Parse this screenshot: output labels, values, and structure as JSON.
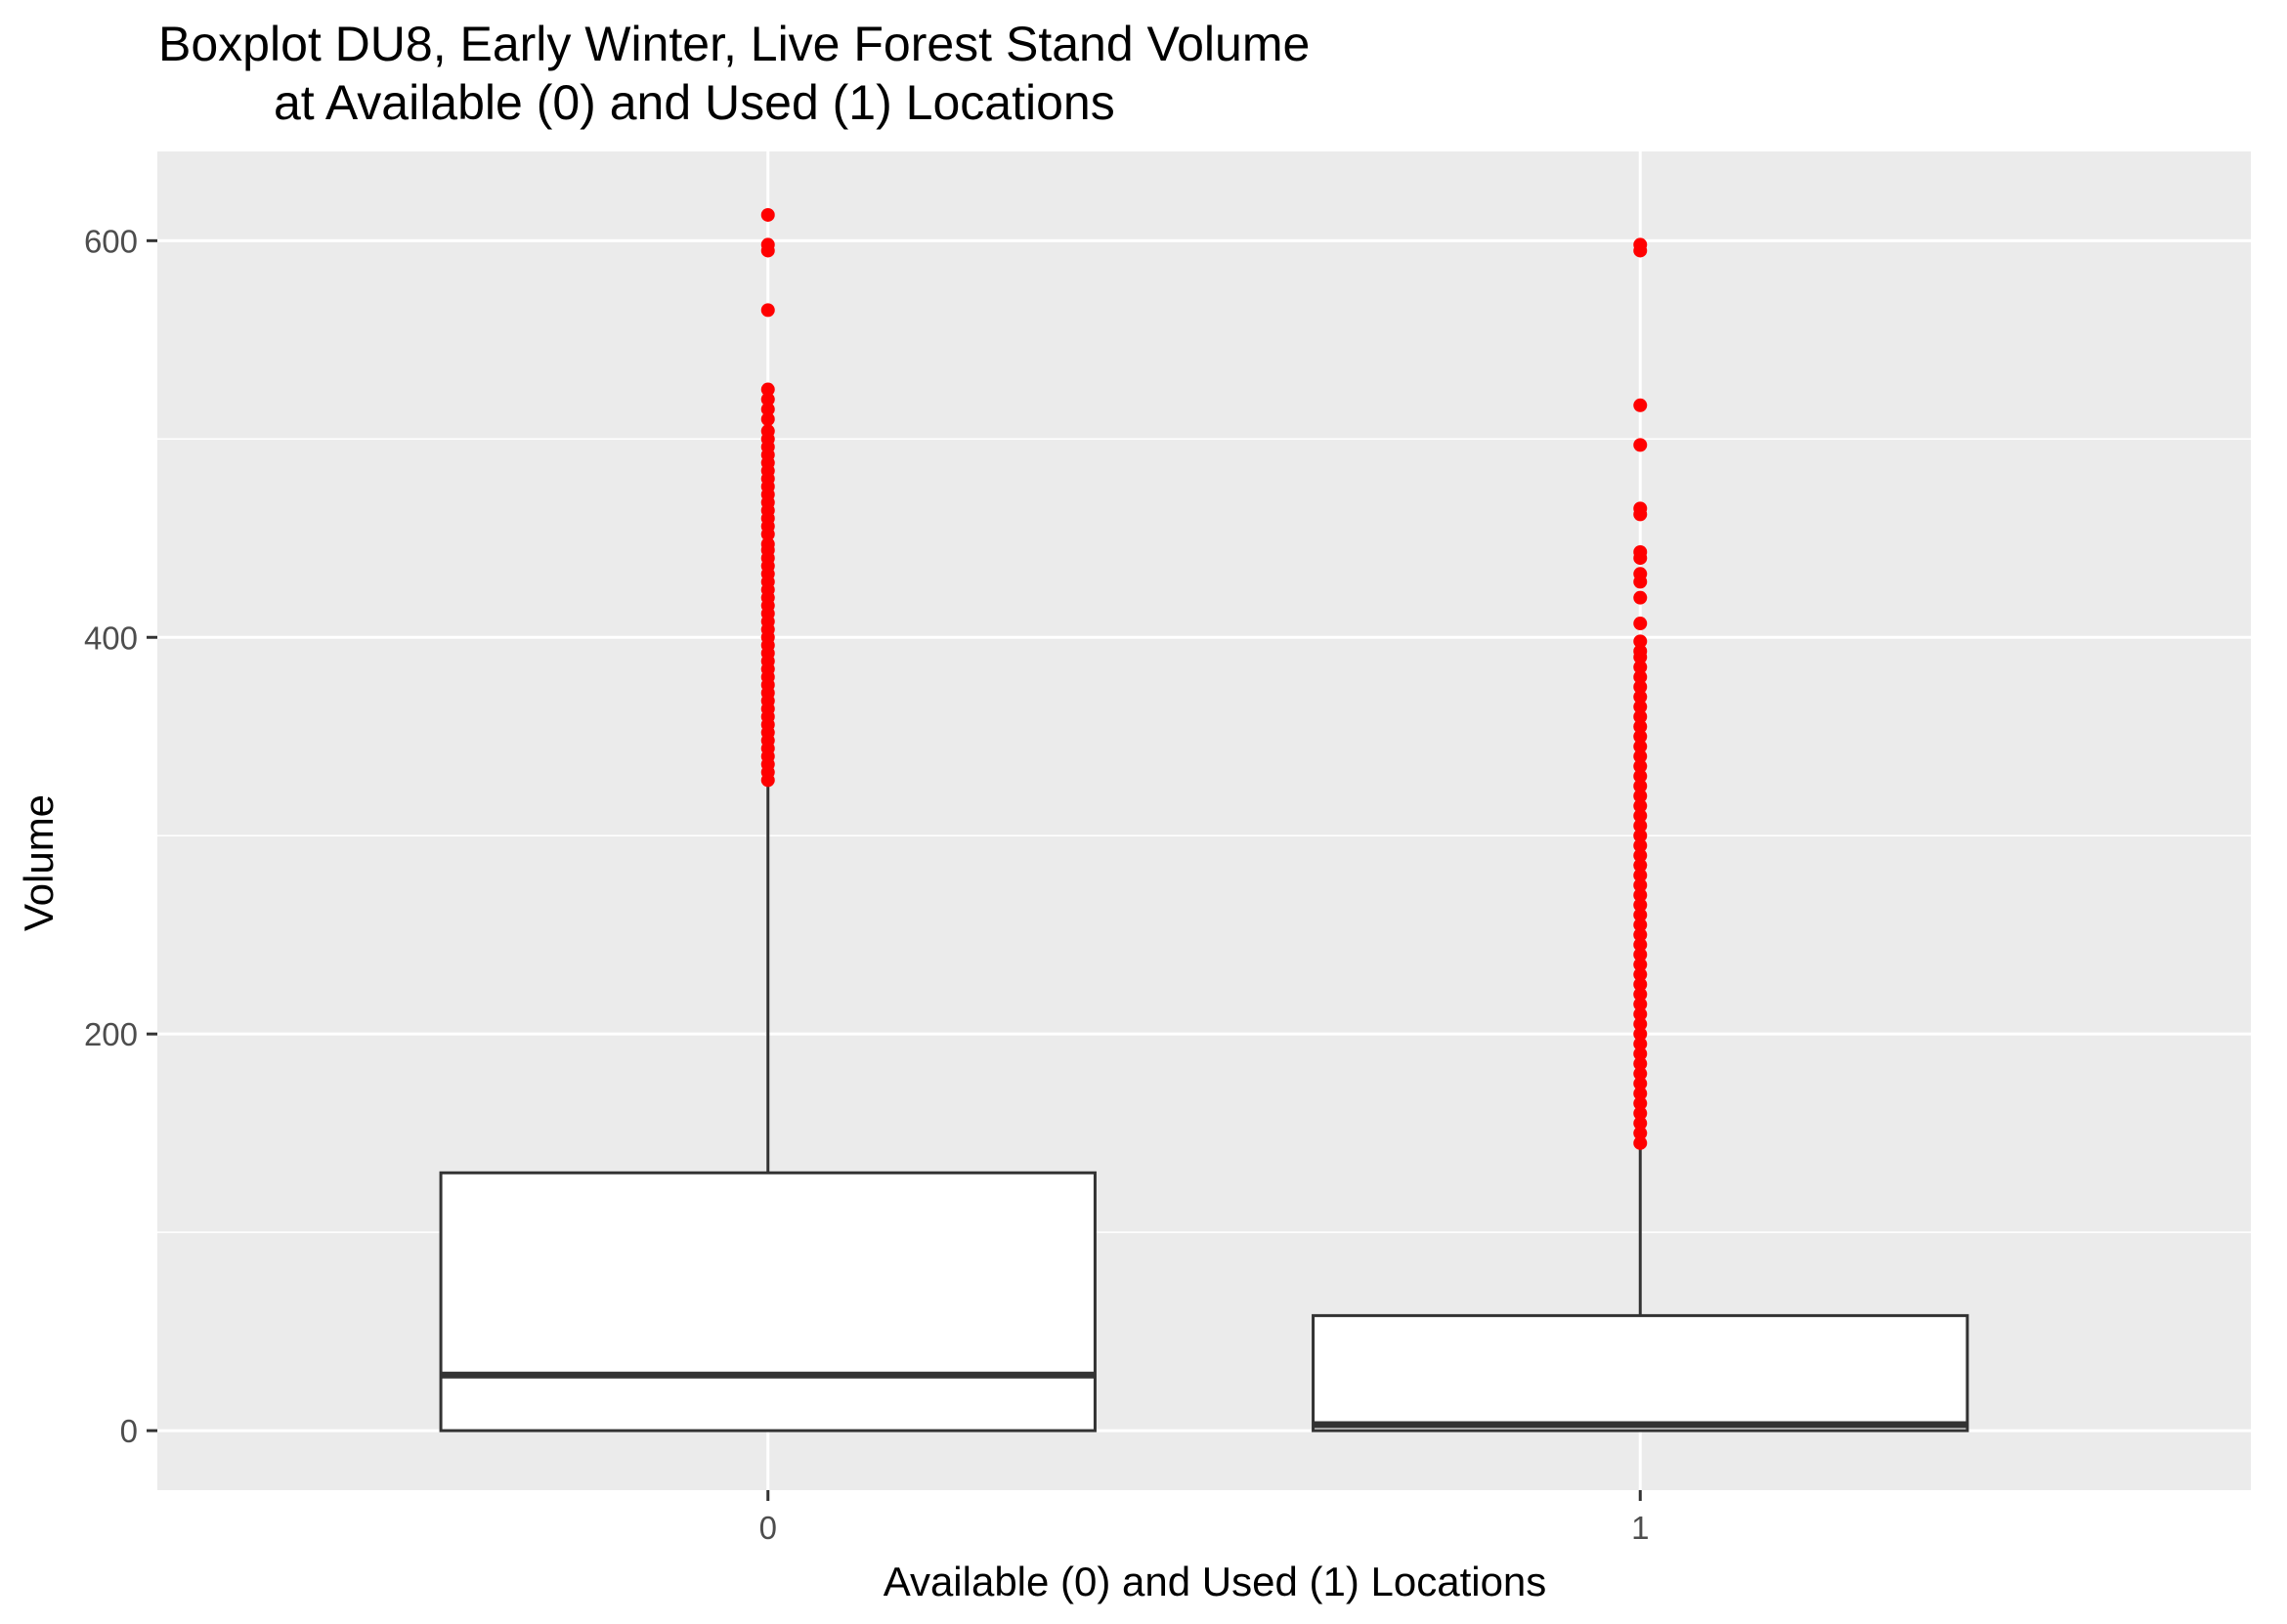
{
  "chart_data": {
    "type": "boxplot",
    "title_line1": "Boxplot DU8, Early Winter, Live Forest Stand Volume",
    "title_line2": "at Available (0) and Used (1) Locations",
    "xlabel": "Available (0) and Used (1) Locations",
    "ylabel": "Volume",
    "categories": [
      "0",
      "1"
    ],
    "ylim": [
      -30,
      645
    ],
    "yticks": [
      0,
      200,
      400,
      600
    ],
    "y_tick_labels": [
      "0",
      "200",
      "400",
      "600"
    ],
    "grid": true,
    "colors": {
      "panel_bg": "#ebebeb",
      "grid": "#ffffff",
      "box_fill": "#ffffff",
      "box_stroke": "#333333",
      "outlier": "#ff0000"
    },
    "boxes": [
      {
        "category": "0",
        "min": 0,
        "q1": 0,
        "median": 28,
        "q3": 130,
        "whisker_high": 325,
        "outliers": [
          328,
          332,
          336,
          340,
          344,
          348,
          352,
          356,
          360,
          364,
          368,
          372,
          376,
          380,
          384,
          388,
          392,
          396,
          400,
          404,
          408,
          412,
          416,
          420,
          424,
          428,
          432,
          436,
          440,
          444,
          447,
          452,
          456,
          460,
          464,
          468,
          472,
          476,
          480,
          484,
          488,
          492,
          496,
          500,
          504,
          510,
          515,
          520,
          525,
          565,
          595,
          598,
          613
        ]
      },
      {
        "category": "1",
        "min": 0,
        "q1": 0,
        "median": 3,
        "q3": 58,
        "whisker_high": 142,
        "outliers": [
          145,
          150,
          155,
          160,
          165,
          170,
          175,
          180,
          185,
          190,
          195,
          200,
          205,
          210,
          215,
          220,
          225,
          230,
          235,
          240,
          245,
          250,
          255,
          260,
          265,
          270,
          275,
          280,
          285,
          290,
          295,
          300,
          305,
          310,
          315,
          320,
          325,
          330,
          335,
          340,
          345,
          350,
          355,
          360,
          365,
          370,
          375,
          380,
          385,
          390,
          393,
          398,
          407,
          420,
          428,
          432,
          440,
          443,
          462,
          465,
          497,
          517,
          595,
          598
        ]
      }
    ]
  }
}
